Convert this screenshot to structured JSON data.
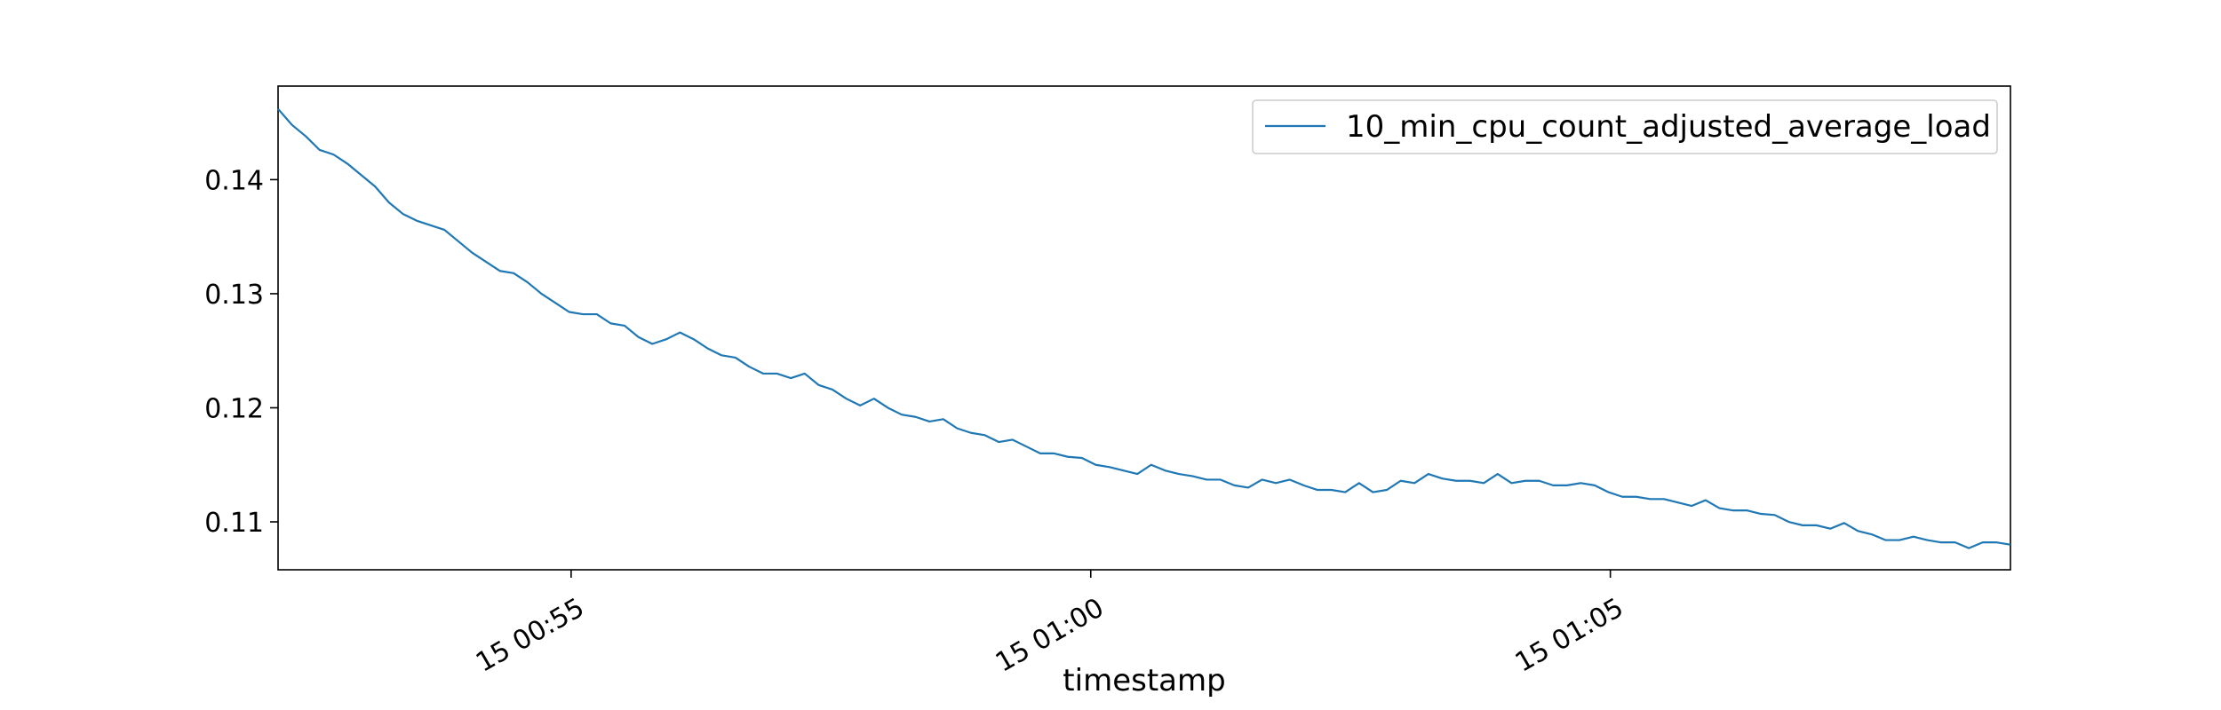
{
  "chart_data": {
    "type": "line",
    "title": "",
    "xlabel": "timestamp",
    "ylabel": "",
    "x_start_minutes": 0,
    "x_end_minutes": 16.67,
    "x_ticks": [
      {
        "minute": 2.82,
        "label": "15 00:55"
      },
      {
        "minute": 7.82,
        "label": "15 01:00"
      },
      {
        "minute": 12.82,
        "label": "15 01:05"
      }
    ],
    "ylim": [
      0.1058,
      0.1482
    ],
    "y_ticks": [
      {
        "value": 0.11,
        "label": "0.11"
      },
      {
        "value": 0.12,
        "label": "0.12"
      },
      {
        "value": 0.13,
        "label": "0.13"
      },
      {
        "value": 0.14,
        "label": "0.14"
      }
    ],
    "grid": false,
    "legend": {
      "position": "top-right"
    },
    "series": [
      {
        "name": "10_min_cpu_count_adjusted_average_load",
        "color": "#1f77b4",
        "values": [
          0.1462,
          0.1448,
          0.1438,
          0.1426,
          0.1422,
          0.1414,
          0.1404,
          0.1394,
          0.138,
          0.137,
          0.1364,
          0.136,
          0.1356,
          0.1346,
          0.1336,
          0.1328,
          0.132,
          0.1318,
          0.131,
          0.13,
          0.1292,
          0.1284,
          0.1282,
          0.1282,
          0.1274,
          0.1272,
          0.1262,
          0.1256,
          0.126,
          0.1266,
          0.126,
          0.1252,
          0.1246,
          0.1244,
          0.1236,
          0.123,
          0.123,
          0.1226,
          0.123,
          0.122,
          0.1216,
          0.1208,
          0.1202,
          0.1208,
          0.12,
          0.1194,
          0.1192,
          0.1188,
          0.119,
          0.1182,
          0.1178,
          0.1176,
          0.117,
          0.1172,
          0.1166,
          0.116,
          0.116,
          0.1157,
          0.1156,
          0.115,
          0.1148,
          0.1145,
          0.1142,
          0.115,
          0.1145,
          0.1142,
          0.114,
          0.1137,
          0.1137,
          0.1132,
          0.113,
          0.1137,
          0.1134,
          0.1137,
          0.1132,
          0.1128,
          0.1128,
          0.1126,
          0.1134,
          0.1126,
          0.1128,
          0.1136,
          0.1134,
          0.1142,
          0.1138,
          0.1136,
          0.1136,
          0.1134,
          0.1142,
          0.1134,
          0.1136,
          0.1136,
          0.1132,
          0.1132,
          0.1134,
          0.1132,
          0.1126,
          0.1122,
          0.1122,
          0.112,
          0.112,
          0.1117,
          0.1114,
          0.1119,
          0.1112,
          0.111,
          0.111,
          0.1107,
          0.1106,
          0.11,
          0.1097,
          0.1097,
          0.1094,
          0.1099,
          0.1092,
          0.1089,
          0.1084,
          0.1084,
          0.1087,
          0.1084,
          0.1082,
          0.1082,
          0.1077,
          0.1082,
          0.1082,
          0.108
        ]
      }
    ]
  }
}
